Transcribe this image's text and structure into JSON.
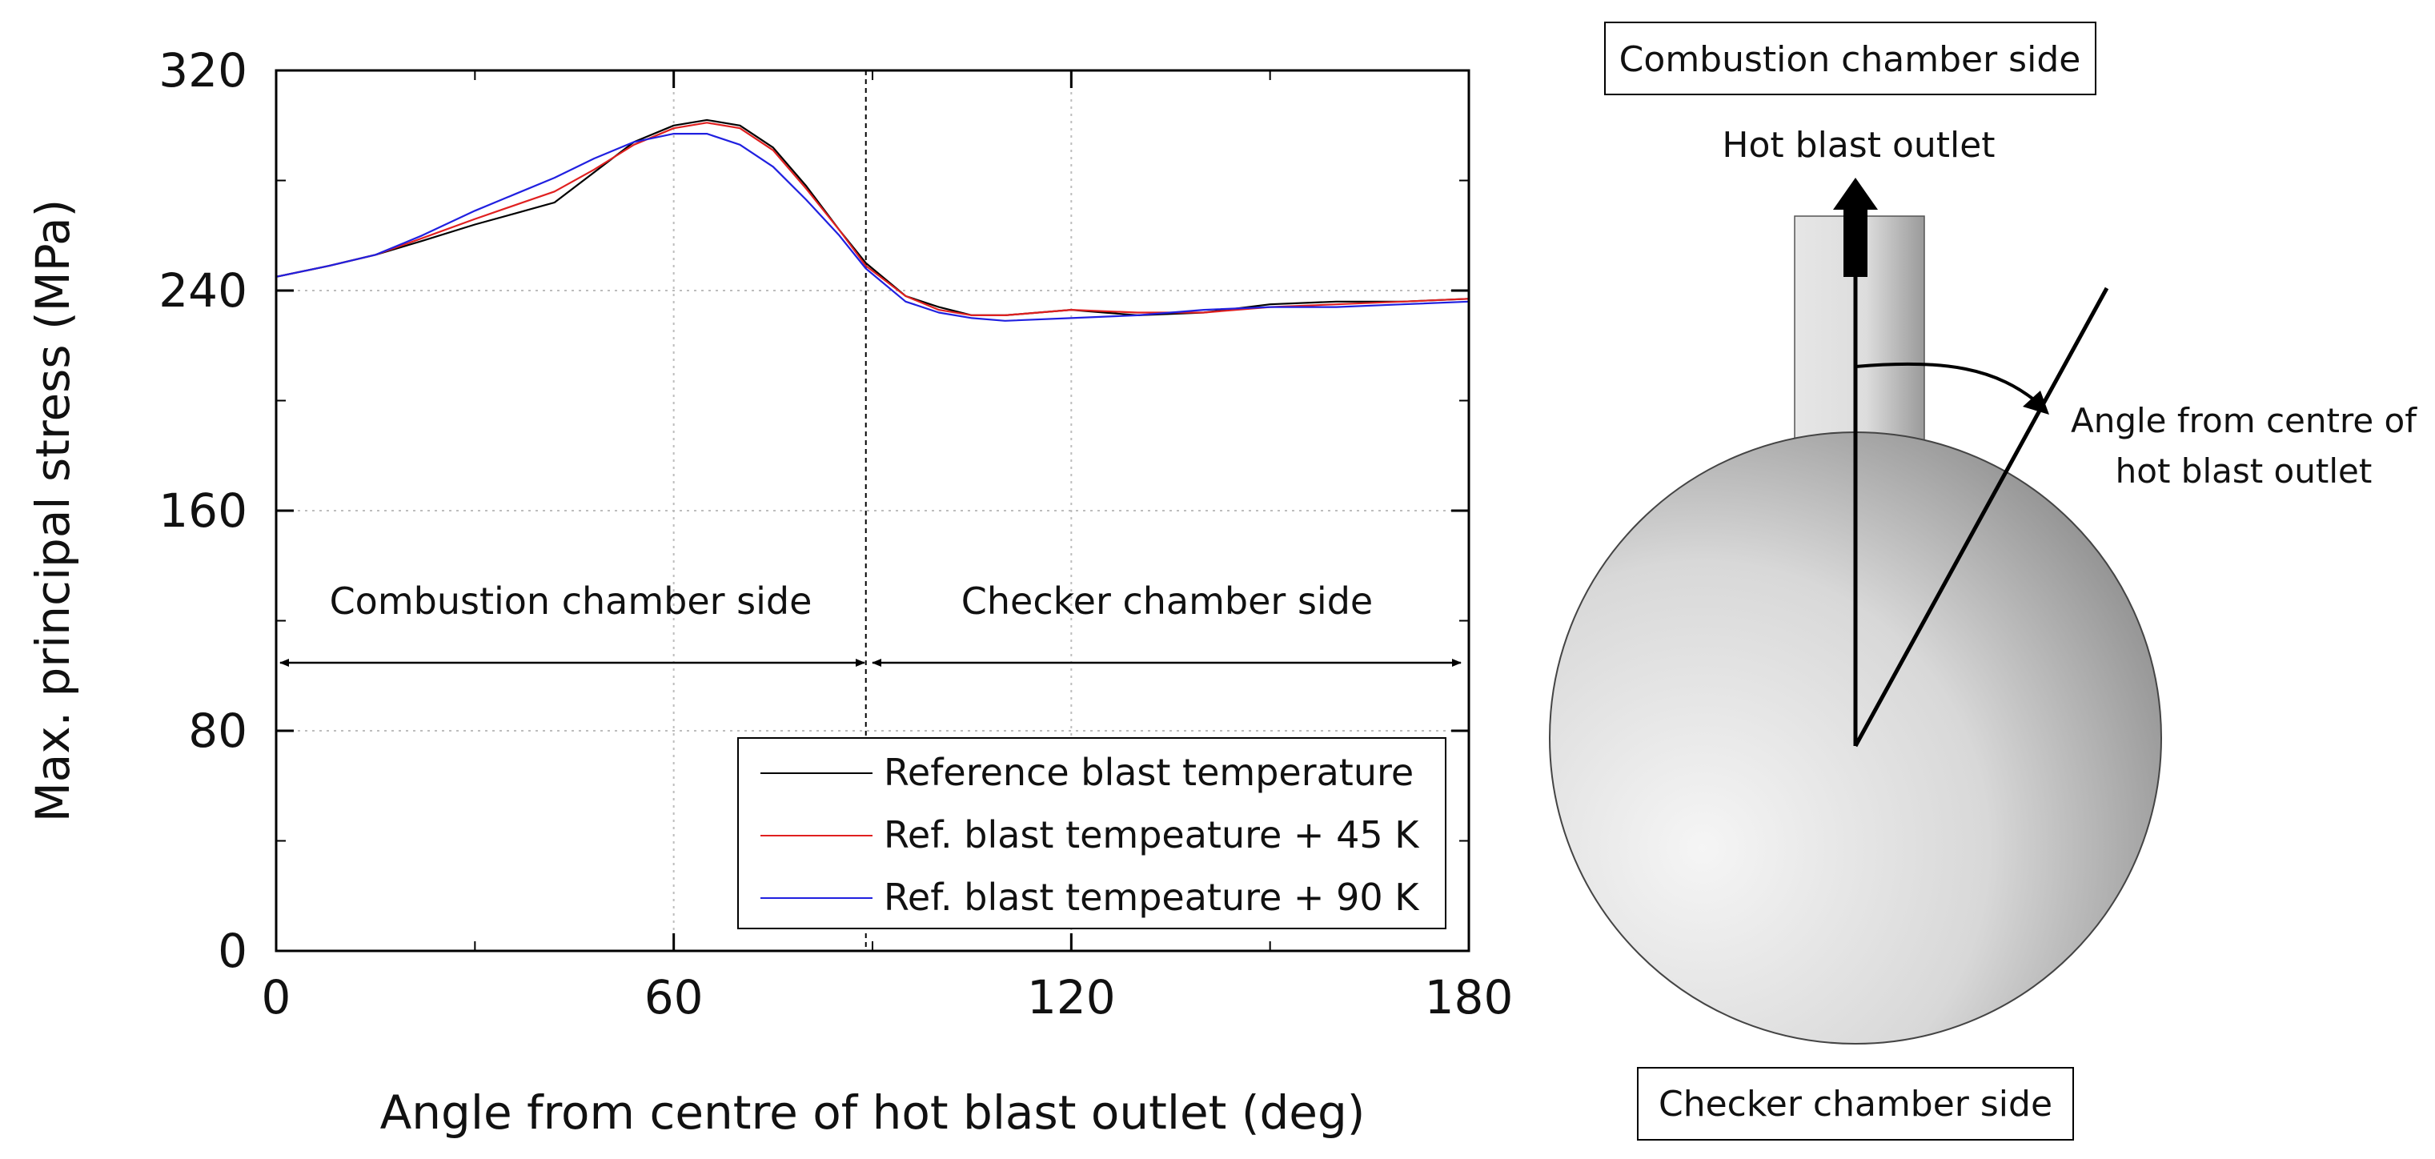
{
  "chart_data": {
    "type": "line",
    "xlabel": "Angle from centre of hot blast outlet (deg)",
    "ylabel": "Max. principal stress (MPa)",
    "xlim": [
      0,
      180
    ],
    "ylim": [
      0,
      320
    ],
    "xticks": [
      0,
      60,
      120,
      180
    ],
    "yticks": [
      0,
      80,
      160,
      240,
      320
    ],
    "grid": "dotted, at major ticks",
    "legend_position": "bottom-right",
    "divider_x": 89,
    "region_labels": {
      "left": "Combustion chamber side",
      "right": "Checker chamber side"
    },
    "series": [
      {
        "name": "Reference blast temperature",
        "color": "#000000",
        "x": [
          0,
          8,
          15,
          22,
          30,
          36,
          42,
          48,
          54,
          60,
          65,
          70,
          75,
          80,
          85,
          89,
          95,
          100,
          105,
          110,
          120,
          130,
          140,
          150,
          160,
          170,
          180
        ],
        "y": [
          245,
          249,
          253,
          258,
          264,
          268,
          272,
          283,
          294,
          300,
          302,
          300,
          292,
          278,
          262,
          250,
          238,
          234,
          231,
          231,
          233,
          231,
          232,
          235,
          236,
          236,
          237
        ]
      },
      {
        "name": "Ref. blast tempeature + 45 K",
        "color": "#e02020",
        "x": [
          0,
          8,
          15,
          22,
          30,
          36,
          42,
          48,
          54,
          60,
          65,
          70,
          75,
          80,
          85,
          89,
          95,
          100,
          105,
          110,
          120,
          130,
          140,
          150,
          160,
          170,
          180
        ],
        "y": [
          245,
          249,
          253,
          259,
          266,
          271,
          276,
          284,
          293,
          299,
          301,
          299,
          291,
          277,
          262,
          249,
          238,
          233,
          231,
          231,
          233,
          232,
          232,
          234,
          235,
          236,
          237
        ]
      },
      {
        "name": "Ref. blast tempeature + 90 K",
        "color": "#2020e0",
        "x": [
          0,
          8,
          15,
          22,
          30,
          36,
          42,
          48,
          54,
          60,
          65,
          70,
          75,
          80,
          85,
          89,
          95,
          100,
          105,
          110,
          120,
          130,
          140,
          150,
          160,
          170,
          180
        ],
        "y": [
          245,
          249,
          253,
          260,
          269,
          275,
          281,
          288,
          294,
          297,
          297,
          293,
          285,
          273,
          260,
          248,
          236,
          232,
          230,
          229,
          230,
          231,
          233,
          234,
          234,
          235,
          236
        ]
      }
    ]
  },
  "diagram": {
    "label_top": "Combustion chamber side",
    "label_outlet": "Hot blast outlet",
    "label_angle_line1": "Angle from centre of",
    "label_angle_line2": "hot blast outlet",
    "label_bottom": "Checker chamber side"
  }
}
